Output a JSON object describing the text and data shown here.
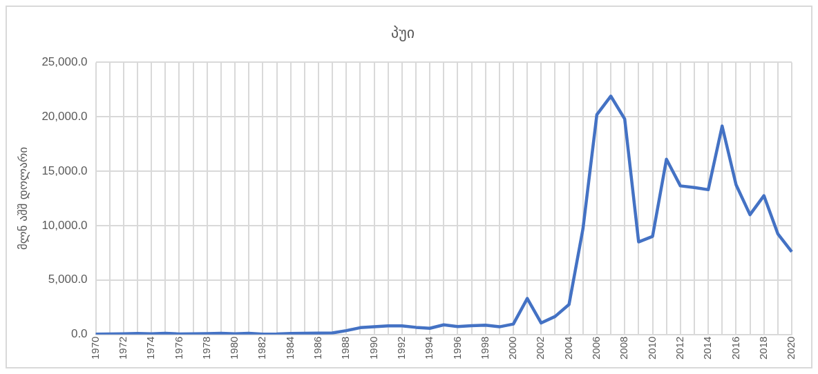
{
  "chart_data": {
    "type": "line",
    "title": "პუი",
    "ylabel": "მლნ აშშ დოლარი",
    "categories": [
      "1970",
      null,
      "1972",
      null,
      "1974",
      null,
      "1976",
      null,
      "1978",
      null,
      "1980",
      null,
      "1982",
      null,
      "1984",
      null,
      "1986",
      null,
      "1988",
      null,
      "1990",
      null,
      "1992",
      null,
      "1994",
      null,
      "1996",
      null,
      "1998",
      null,
      "2000",
      null,
      "2002",
      null,
      "2004",
      null,
      "2006",
      null,
      "2008",
      null,
      "2010",
      null,
      "2012",
      null,
      "2014",
      null,
      "2016",
      null,
      "2018",
      null,
      "2020"
    ],
    "series": [
      {
        "color": "#4472c4",
        "values": [
          30,
          40,
          60,
          90,
          50,
          100,
          40,
          50,
          70,
          100,
          60,
          100,
          30,
          40,
          80,
          100,
          120,
          130,
          350,
          620,
          700,
          780,
          790,
          650,
          560,
          880,
          720,
          800,
          850,
          700,
          950,
          3300,
          1050,
          1650,
          2750,
          9700,
          20200,
          21900,
          19800,
          8500,
          9000,
          16100,
          13650,
          13500,
          13300,
          19150,
          13750,
          11000,
          12750,
          9250,
          7600
        ]
      }
    ],
    "ylim": [
      0,
      25000
    ],
    "yticks": [
      {
        "value": 0,
        "label": "0.0"
      },
      {
        "value": 5000,
        "label": "5,000.0"
      },
      {
        "value": 10000,
        "label": "10,000.0"
      },
      {
        "value": 15000,
        "label": "15,000.0"
      },
      {
        "value": 20000,
        "label": "20,000.0"
      },
      {
        "value": 25000,
        "label": "25,000.0"
      }
    ],
    "grid": true,
    "legend": false,
    "marker": "none",
    "line_style": "solid"
  }
}
